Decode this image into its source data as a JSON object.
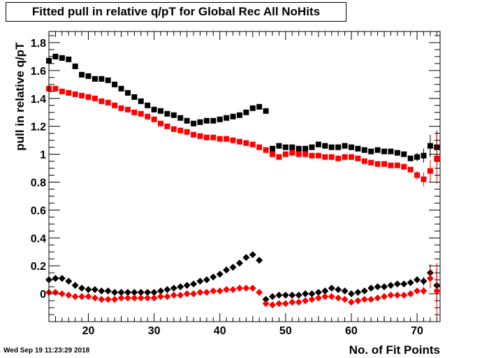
{
  "title": "Fitted pull in relative q/pT for Global Rec All NoHits",
  "timestamp": "Wed Sep 19 11:23:29 2018",
  "chart_data": {
    "type": "scatter",
    "title": "Fitted pull in relative q/pT for Global Rec All NoHits",
    "xlabel": "No. of Fit Points",
    "ylabel": "pull in relative q/pT",
    "xlim": [
      14,
      73.5
    ],
    "ylim": [
      -0.2,
      1.88
    ],
    "xticks": [
      20,
      30,
      40,
      50,
      60,
      70
    ],
    "xtick_labels": [
      "20",
      "30",
      "40",
      "50",
      "60",
      "70"
    ],
    "yticks": [
      0,
      0.2,
      0.4,
      0.6,
      0.8,
      1,
      1.2,
      1.4,
      1.6,
      1.8
    ],
    "ytick_labels": [
      "0",
      "0.2",
      "0.4",
      "0.6",
      "0.8",
      "1",
      "1.2",
      "1.4",
      "1.6",
      "1.8"
    ],
    "grid": false,
    "legend": "none",
    "series": [
      {
        "marker": "square",
        "color": "#000000",
        "x": [
          14,
          15,
          16,
          17,
          18,
          19,
          20,
          21,
          22,
          23,
          24,
          25,
          26,
          27,
          28,
          29,
          30,
          31,
          32,
          33,
          34,
          35,
          36,
          37,
          38,
          39,
          40,
          41,
          42,
          43,
          44,
          45,
          46,
          47,
          48,
          49,
          50,
          51,
          52,
          53,
          54,
          55,
          56,
          57,
          58,
          59,
          60,
          61,
          62,
          63,
          64,
          65,
          66,
          67,
          68,
          69,
          70,
          71,
          72,
          73
        ],
        "y": [
          1.67,
          1.7,
          1.69,
          1.68,
          1.63,
          1.57,
          1.56,
          1.54,
          1.54,
          1.53,
          1.5,
          1.47,
          1.44,
          1.41,
          1.38,
          1.35,
          1.32,
          1.31,
          1.29,
          1.28,
          1.26,
          1.24,
          1.22,
          1.23,
          1.24,
          1.24,
          1.25,
          1.26,
          1.27,
          1.28,
          1.3,
          1.33,
          1.34,
          1.31,
          1.04,
          1.06,
          1.05,
          1.05,
          1.04,
          1.04,
          1.05,
          1.07,
          1.06,
          1.05,
          1.05,
          1.06,
          1.05,
          1.04,
          1.03,
          1.02,
          1.03,
          1.02,
          1.02,
          1.01,
          1.0,
          0.97,
          0.98,
          0.99,
          1.06,
          1.05
        ],
        "err": [
          0,
          0,
          0,
          0,
          0,
          0,
          0,
          0,
          0,
          0,
          0,
          0,
          0,
          0,
          0,
          0,
          0,
          0,
          0,
          0,
          0,
          0,
          0,
          0,
          0,
          0,
          0,
          0,
          0,
          0,
          0,
          0,
          0,
          0,
          0,
          0,
          0,
          0,
          0,
          0,
          0,
          0,
          0,
          0,
          0,
          0,
          0,
          0,
          0,
          0,
          0,
          0,
          0,
          0,
          0,
          0,
          0.03,
          0.05,
          0.08,
          0.12
        ]
      },
      {
        "marker": "square",
        "color": "#ff0000",
        "x": [
          14,
          15,
          16,
          17,
          18,
          19,
          20,
          21,
          22,
          23,
          24,
          25,
          26,
          27,
          28,
          29,
          30,
          31,
          32,
          33,
          34,
          35,
          36,
          37,
          38,
          39,
          40,
          41,
          42,
          43,
          44,
          45,
          46,
          47,
          48,
          49,
          50,
          51,
          52,
          53,
          54,
          55,
          56,
          57,
          58,
          59,
          60,
          61,
          62,
          63,
          64,
          65,
          66,
          67,
          68,
          69,
          70,
          71,
          72,
          73
        ],
        "y": [
          1.47,
          1.47,
          1.45,
          1.44,
          1.43,
          1.42,
          1.41,
          1.4,
          1.38,
          1.37,
          1.35,
          1.33,
          1.32,
          1.3,
          1.29,
          1.27,
          1.25,
          1.22,
          1.2,
          1.18,
          1.17,
          1.16,
          1.14,
          1.13,
          1.12,
          1.12,
          1.11,
          1.11,
          1.1,
          1.09,
          1.08,
          1.07,
          1.05,
          1.03,
          1.0,
          0.98,
          1.0,
          1.01,
          1.0,
          1.0,
          0.99,
          0.99,
          0.98,
          0.98,
          0.97,
          0.98,
          0.98,
          0.97,
          0.95,
          0.94,
          0.93,
          0.93,
          0.92,
          0.92,
          0.91,
          0.89,
          0.85,
          0.82,
          0.88,
          0.97
        ],
        "err": [
          0,
          0,
          0,
          0,
          0,
          0,
          0,
          0,
          0,
          0,
          0,
          0,
          0,
          0,
          0,
          0,
          0,
          0,
          0,
          0,
          0,
          0,
          0,
          0,
          0,
          0,
          0,
          0,
          0,
          0,
          0,
          0,
          0,
          0,
          0,
          0,
          0,
          0,
          0,
          0,
          0,
          0,
          0,
          0,
          0,
          0,
          0,
          0,
          0,
          0,
          0,
          0,
          0,
          0,
          0,
          0,
          0.03,
          0.05,
          0.08,
          0.18
        ]
      },
      {
        "marker": "diamond",
        "color": "#000000",
        "x": [
          14,
          15,
          16,
          17,
          18,
          19,
          20,
          21,
          22,
          23,
          24,
          25,
          26,
          27,
          28,
          29,
          30,
          31,
          32,
          33,
          34,
          35,
          36,
          37,
          38,
          39,
          40,
          41,
          42,
          43,
          44,
          45,
          46,
          47,
          48,
          49,
          50,
          51,
          52,
          53,
          54,
          55,
          56,
          57,
          58,
          59,
          60,
          61,
          62,
          63,
          64,
          65,
          66,
          67,
          68,
          69,
          70,
          71,
          72,
          73
        ],
        "y": [
          0.1,
          0.11,
          0.11,
          0.09,
          0.06,
          0.04,
          0.03,
          0.03,
          0.02,
          0.02,
          0.01,
          0.01,
          0.01,
          0.01,
          0.01,
          0.01,
          0.01,
          0.02,
          0.03,
          0.04,
          0.05,
          0.06,
          0.07,
          0.09,
          0.1,
          0.12,
          0.14,
          0.17,
          0.19,
          0.22,
          0.26,
          0.28,
          0.24,
          -0.04,
          -0.02,
          -0.01,
          -0.01,
          -0.01,
          -0.01,
          0.0,
          0.0,
          0.01,
          0.02,
          0.04,
          0.03,
          0.02,
          0.0,
          0.01,
          0.02,
          0.04,
          0.05,
          0.05,
          0.06,
          0.07,
          0.07,
          0.08,
          0.1,
          0.09,
          0.15,
          0.06
        ],
        "err": [
          0,
          0,
          0,
          0,
          0,
          0,
          0,
          0,
          0,
          0,
          0,
          0,
          0,
          0,
          0,
          0,
          0,
          0,
          0,
          0,
          0,
          0,
          0,
          0,
          0,
          0,
          0,
          0,
          0,
          0,
          0,
          0,
          0,
          0,
          0,
          0,
          0,
          0,
          0,
          0,
          0,
          0,
          0,
          0,
          0,
          0,
          0,
          0,
          0,
          0,
          0,
          0,
          0,
          0,
          0,
          0,
          0.02,
          0.03,
          0.06,
          0.12
        ]
      },
      {
        "marker": "diamond",
        "color": "#ff0000",
        "x": [
          14,
          15,
          16,
          17,
          18,
          19,
          20,
          21,
          22,
          23,
          24,
          25,
          26,
          27,
          28,
          29,
          30,
          31,
          32,
          33,
          34,
          35,
          36,
          37,
          38,
          39,
          40,
          41,
          42,
          43,
          44,
          45,
          46,
          47,
          48,
          49,
          50,
          51,
          52,
          53,
          54,
          55,
          56,
          57,
          58,
          59,
          60,
          61,
          62,
          63,
          64,
          65,
          66,
          67,
          68,
          69,
          70,
          71,
          72,
          73
        ],
        "y": [
          0.01,
          0.01,
          0.0,
          -0.01,
          -0.02,
          -0.02,
          -0.02,
          -0.03,
          -0.04,
          -0.04,
          -0.04,
          -0.03,
          -0.03,
          -0.03,
          -0.03,
          -0.03,
          -0.03,
          -0.02,
          -0.02,
          -0.01,
          -0.01,
          0.0,
          0.0,
          0.01,
          0.01,
          0.02,
          0.02,
          0.03,
          0.03,
          0.04,
          0.04,
          0.04,
          0.01,
          -0.07,
          -0.08,
          -0.07,
          -0.07,
          -0.06,
          -0.06,
          -0.05,
          -0.04,
          -0.03,
          -0.02,
          -0.02,
          -0.03,
          -0.04,
          -0.06,
          -0.05,
          -0.04,
          -0.04,
          -0.03,
          -0.02,
          -0.01,
          -0.01,
          -0.01,
          0.0,
          0.02,
          0.02,
          0.11,
          0.02
        ],
        "err": [
          0,
          0,
          0,
          0,
          0,
          0,
          0,
          0,
          0,
          0,
          0,
          0,
          0,
          0,
          0,
          0,
          0,
          0,
          0,
          0,
          0,
          0,
          0,
          0,
          0,
          0,
          0,
          0,
          0,
          0,
          0,
          0,
          0,
          0,
          0,
          0,
          0,
          0,
          0,
          0,
          0,
          0,
          0,
          0,
          0,
          0,
          0,
          0,
          0,
          0,
          0,
          0,
          0,
          0,
          0,
          0,
          0.02,
          0.03,
          0.07,
          0.2
        ]
      }
    ]
  }
}
